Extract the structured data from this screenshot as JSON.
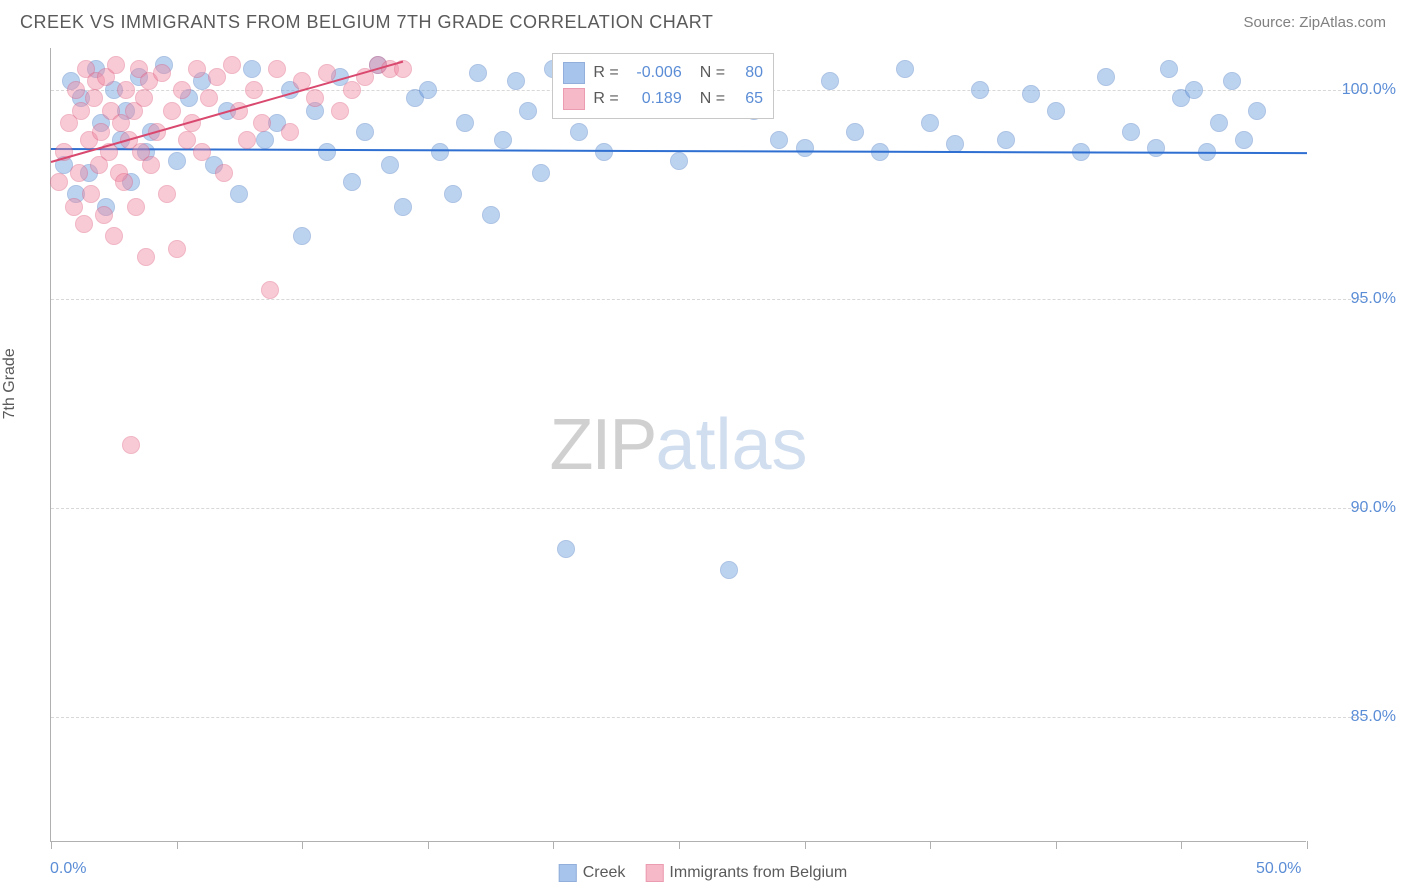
{
  "header": {
    "title": "CREEK VS IMMIGRANTS FROM BELGIUM 7TH GRADE CORRELATION CHART",
    "source": "Source: ZipAtlas.com"
  },
  "chart": {
    "type": "scatter",
    "ylabel": "7th Grade",
    "xlim": [
      0,
      50
    ],
    "ylim": [
      82,
      101
    ],
    "xtick_positions": [
      0,
      5,
      10,
      15,
      20,
      25,
      30,
      35,
      40,
      45,
      50
    ],
    "xtick_labels": {
      "0": "0.0%",
      "50": "50.0%"
    },
    "ytick_positions": [
      85,
      90,
      95,
      100
    ],
    "ytick_labels": {
      "85": "85.0%",
      "90": "90.0%",
      "95": "95.0%",
      "100": "100.0%"
    },
    "background_color": "#ffffff",
    "grid_color": "#d8d8d8",
    "axis_color": "#b0b0b0",
    "label_color": "#5b8dd6",
    "point_radius": 9,
    "point_opacity": 0.45,
    "series": [
      {
        "name": "Creek",
        "fill_color": "#6d9fe0",
        "stroke_color": "#4a7bc4",
        "trend": {
          "x1": 0,
          "y1": 98.6,
          "x2": 50,
          "y2": 98.5,
          "color": "#2e6fd1",
          "width": 2
        },
        "R": "-0.006",
        "N": "80",
        "points": [
          [
            0.5,
            98.2
          ],
          [
            0.8,
            100.2
          ],
          [
            1.0,
            97.5
          ],
          [
            1.2,
            99.8
          ],
          [
            1.5,
            98.0
          ],
          [
            1.8,
            100.5
          ],
          [
            2.0,
            99.2
          ],
          [
            2.2,
            97.2
          ],
          [
            2.5,
            100.0
          ],
          [
            2.8,
            98.8
          ],
          [
            3.0,
            99.5
          ],
          [
            3.2,
            97.8
          ],
          [
            3.5,
            100.3
          ],
          [
            3.8,
            98.5
          ],
          [
            4.0,
            99.0
          ],
          [
            4.5,
            100.6
          ],
          [
            5.0,
            98.3
          ],
          [
            5.5,
            99.8
          ],
          [
            6.0,
            100.2
          ],
          [
            6.5,
            98.2
          ],
          [
            7.0,
            99.5
          ],
          [
            7.5,
            97.5
          ],
          [
            8.0,
            100.5
          ],
          [
            8.5,
            98.8
          ],
          [
            9.0,
            99.2
          ],
          [
            9.5,
            100.0
          ],
          [
            10.0,
            96.5
          ],
          [
            10.5,
            99.5
          ],
          [
            11.0,
            98.5
          ],
          [
            11.5,
            100.3
          ],
          [
            12.0,
            97.8
          ],
          [
            12.5,
            99.0
          ],
          [
            13.0,
            100.6
          ],
          [
            13.5,
            98.2
          ],
          [
            14.0,
            97.2
          ],
          [
            14.5,
            99.8
          ],
          [
            15.0,
            100.0
          ],
          [
            15.5,
            98.5
          ],
          [
            16.0,
            97.5
          ],
          [
            16.5,
            99.2
          ],
          [
            17.0,
            100.4
          ],
          [
            17.5,
            97.0
          ],
          [
            18.0,
            98.8
          ],
          [
            18.5,
            100.2
          ],
          [
            19.0,
            99.5
          ],
          [
            19.5,
            98.0
          ],
          [
            20.0,
            100.5
          ],
          [
            20.5,
            89.0
          ],
          [
            21.0,
            99.0
          ],
          [
            22.0,
            98.5
          ],
          [
            23.0,
            100.0
          ],
          [
            24.0,
            99.8
          ],
          [
            25.0,
            98.3
          ],
          [
            26.0,
            100.3
          ],
          [
            27.0,
            88.5
          ],
          [
            28.0,
            99.5
          ],
          [
            29.0,
            98.8
          ],
          [
            30.0,
            98.6
          ],
          [
            31.0,
            100.2
          ],
          [
            32.0,
            99.0
          ],
          [
            33.0,
            98.5
          ],
          [
            34.0,
            100.5
          ],
          [
            35.0,
            99.2
          ],
          [
            36.0,
            98.7
          ],
          [
            37.0,
            100.0
          ],
          [
            38.0,
            98.8
          ],
          [
            39.0,
            99.9
          ],
          [
            40.0,
            99.5
          ],
          [
            41.0,
            98.5
          ],
          [
            42.0,
            100.3
          ],
          [
            43.0,
            99.0
          ],
          [
            44.0,
            98.6
          ],
          [
            44.5,
            100.5
          ],
          [
            45.0,
            99.8
          ],
          [
            45.5,
            100.0
          ],
          [
            46.0,
            98.5
          ],
          [
            46.5,
            99.2
          ],
          [
            47.0,
            100.2
          ],
          [
            47.5,
            98.8
          ],
          [
            48.0,
            99.5
          ]
        ]
      },
      {
        "name": "Immigrants from Belgium",
        "fill_color": "#f08ba4",
        "stroke_color": "#e05c7e",
        "trend": {
          "x1": 0,
          "y1": 98.3,
          "x2": 14,
          "y2": 100.7,
          "color": "#d9486e",
          "width": 2
        },
        "R": "0.189",
        "N": "65",
        "points": [
          [
            0.3,
            97.8
          ],
          [
            0.5,
            98.5
          ],
          [
            0.7,
            99.2
          ],
          [
            0.9,
            97.2
          ],
          [
            1.0,
            100.0
          ],
          [
            1.1,
            98.0
          ],
          [
            1.2,
            99.5
          ],
          [
            1.3,
            96.8
          ],
          [
            1.4,
            100.5
          ],
          [
            1.5,
            98.8
          ],
          [
            1.6,
            97.5
          ],
          [
            1.7,
            99.8
          ],
          [
            1.8,
            100.2
          ],
          [
            1.9,
            98.2
          ],
          [
            2.0,
            99.0
          ],
          [
            2.1,
            97.0
          ],
          [
            2.2,
            100.3
          ],
          [
            2.3,
            98.5
          ],
          [
            2.4,
            99.5
          ],
          [
            2.5,
            96.5
          ],
          [
            2.6,
            100.6
          ],
          [
            2.7,
            98.0
          ],
          [
            2.8,
            99.2
          ],
          [
            2.9,
            97.8
          ],
          [
            3.0,
            100.0
          ],
          [
            3.1,
            98.8
          ],
          [
            3.2,
            91.5
          ],
          [
            3.3,
            99.5
          ],
          [
            3.4,
            97.2
          ],
          [
            3.5,
            100.5
          ],
          [
            3.6,
            98.5
          ],
          [
            3.7,
            99.8
          ],
          [
            3.8,
            96.0
          ],
          [
            3.9,
            100.2
          ],
          [
            4.0,
            98.2
          ],
          [
            4.2,
            99.0
          ],
          [
            4.4,
            100.4
          ],
          [
            4.6,
            97.5
          ],
          [
            4.8,
            99.5
          ],
          [
            5.0,
            96.2
          ],
          [
            5.2,
            100.0
          ],
          [
            5.4,
            98.8
          ],
          [
            5.6,
            99.2
          ],
          [
            5.8,
            100.5
          ],
          [
            6.0,
            98.5
          ],
          [
            6.3,
            99.8
          ],
          [
            6.6,
            100.3
          ],
          [
            6.9,
            98.0
          ],
          [
            7.2,
            100.6
          ],
          [
            7.5,
            99.5
          ],
          [
            7.8,
            98.8
          ],
          [
            8.1,
            100.0
          ],
          [
            8.4,
            99.2
          ],
          [
            8.7,
            95.2
          ],
          [
            9.0,
            100.5
          ],
          [
            9.5,
            99.0
          ],
          [
            10.0,
            100.2
          ],
          [
            10.5,
            99.8
          ],
          [
            11.0,
            100.4
          ],
          [
            11.5,
            99.5
          ],
          [
            12.0,
            100.0
          ],
          [
            12.5,
            100.3
          ],
          [
            13.0,
            100.6
          ],
          [
            13.5,
            100.5
          ],
          [
            14.0,
            100.5
          ]
        ]
      }
    ]
  },
  "legend_stats": {
    "R_label": "R =",
    "N_label": "N ="
  },
  "bottom_legend": {
    "items": [
      "Creek",
      "Immigrants from Belgium"
    ]
  },
  "watermark": {
    "part1": "ZIP",
    "part2": "atlas"
  }
}
